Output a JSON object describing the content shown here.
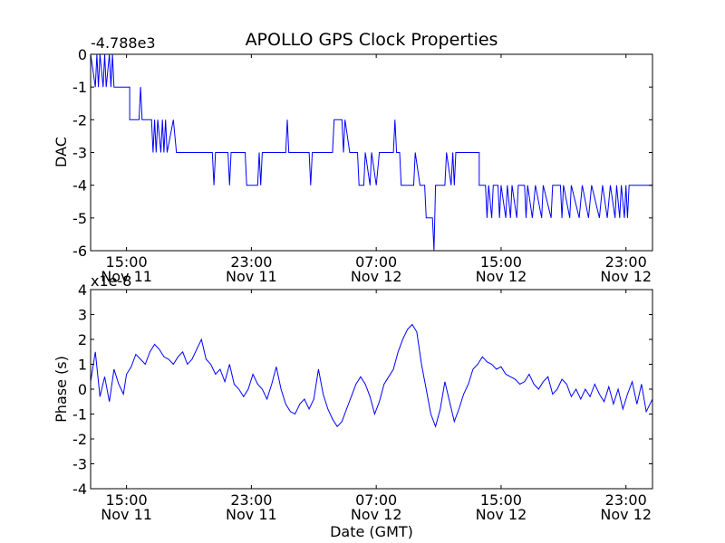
{
  "title": "APOLLO GPS Clock Properties",
  "xlabel": "Date (GMT)",
  "colors": {
    "line": "#0000ff",
    "axes": "#000000",
    "background": "#ffffff"
  },
  "x_ticks": [
    {
      "line1": "15:00",
      "line2": "Nov 11"
    },
    {
      "line1": "23:00",
      "line2": "Nov 11"
    },
    {
      "line1": "07:00",
      "line2": "Nov 12"
    },
    {
      "line1": "15:00",
      "line2": "Nov 12"
    },
    {
      "line1": "23:00",
      "line2": "Nov 12"
    }
  ],
  "top_ylabel": "DAC",
  "top_offset": "-4.788e3",
  "top_yticks": [
    "0",
    "-1",
    "-2",
    "-3",
    "-4",
    "-5",
    "-6"
  ],
  "bottom_ylabel": "Phase (s)",
  "bottom_multiplier": "x1e-8",
  "bottom_yticks": [
    "4",
    "3",
    "2",
    "1",
    "0",
    "-1",
    "-2",
    "-3",
    "-4"
  ],
  "chart_data": [
    {
      "type": "line",
      "title": "APOLLO GPS Clock Properties",
      "xlabel": "",
      "ylabel": "DAC",
      "y_offset": "-4.788e3",
      "x_unit": "hours since Nov 11 00:00 GMT",
      "xlim": [
        12.7,
        48.7
      ],
      "ylim": [
        -6,
        0
      ],
      "grid": false,
      "series": [
        {
          "values": [
            [
              12.7,
              0
            ],
            [
              13.0,
              -1
            ],
            [
              13.1,
              0
            ],
            [
              13.2,
              -1
            ],
            [
              13.3,
              0
            ],
            [
              13.5,
              -1
            ],
            [
              13.6,
              0
            ],
            [
              13.7,
              -1
            ],
            [
              13.9,
              0
            ],
            [
              14.0,
              -1
            ],
            [
              14.1,
              0
            ],
            [
              14.2,
              -1
            ],
            [
              15.2,
              -1
            ],
            [
              15.2,
              -2
            ],
            [
              15.8,
              -2
            ],
            [
              15.9,
              -1
            ],
            [
              16.0,
              -2
            ],
            [
              16.6,
              -2
            ],
            [
              16.7,
              -3
            ],
            [
              16.8,
              -2
            ],
            [
              16.9,
              -3
            ],
            [
              17.0,
              -2
            ],
            [
              17.2,
              -3
            ],
            [
              17.3,
              -2
            ],
            [
              17.4,
              -3
            ],
            [
              17.5,
              -2
            ],
            [
              17.6,
              -3
            ],
            [
              18.0,
              -2
            ],
            [
              18.2,
              -3
            ],
            [
              20.5,
              -3
            ],
            [
              20.6,
              -4
            ],
            [
              20.7,
              -3
            ],
            [
              21.5,
              -3
            ],
            [
              21.6,
              -4
            ],
            [
              21.7,
              -3
            ],
            [
              22.6,
              -3
            ],
            [
              22.7,
              -4
            ],
            [
              23.4,
              -4
            ],
            [
              23.5,
              -3
            ],
            [
              23.6,
              -4
            ],
            [
              23.7,
              -3
            ],
            [
              25.2,
              -3
            ],
            [
              25.3,
              -2
            ],
            [
              25.4,
              -3
            ],
            [
              26.7,
              -3
            ],
            [
              26.8,
              -4
            ],
            [
              26.9,
              -3
            ],
            [
              28.2,
              -3
            ],
            [
              28.3,
              -2
            ],
            [
              28.8,
              -2
            ],
            [
              28.9,
              -3
            ],
            [
              29.0,
              -2
            ],
            [
              29.3,
              -3
            ],
            [
              29.8,
              -3
            ],
            [
              29.9,
              -4
            ],
            [
              30.2,
              -4
            ],
            [
              30.3,
              -3
            ],
            [
              30.6,
              -4
            ],
            [
              30.7,
              -3
            ],
            [
              31.0,
              -4
            ],
            [
              31.2,
              -3
            ],
            [
              32.1,
              -3
            ],
            [
              32.2,
              -2
            ],
            [
              32.3,
              -3
            ],
            [
              32.5,
              -3
            ],
            [
              32.6,
              -4
            ],
            [
              33.4,
              -4
            ],
            [
              33.5,
              -3
            ],
            [
              33.8,
              -4
            ],
            [
              34.1,
              -4
            ],
            [
              34.2,
              -5
            ],
            [
              34.6,
              -5
            ],
            [
              34.7,
              -6
            ],
            [
              34.8,
              -4
            ],
            [
              35.4,
              -4
            ],
            [
              35.5,
              -3
            ],
            [
              35.8,
              -4
            ],
            [
              35.9,
              -3
            ],
            [
              36.0,
              -4
            ],
            [
              36.1,
              -3
            ],
            [
              37.6,
              -3
            ],
            [
              37.6,
              -4
            ],
            [
              38.0,
              -4
            ],
            [
              38.1,
              -5
            ],
            [
              38.2,
              -4
            ],
            [
              38.4,
              -5
            ],
            [
              38.5,
              -4
            ],
            [
              38.8,
              -4
            ],
            [
              38.9,
              -5
            ],
            [
              39.0,
              -4
            ],
            [
              39.3,
              -5
            ],
            [
              39.4,
              -4
            ],
            [
              39.6,
              -5
            ],
            [
              39.7,
              -4
            ],
            [
              40.0,
              -5
            ],
            [
              40.1,
              -4
            ],
            [
              40.5,
              -4
            ],
            [
              40.6,
              -5
            ],
            [
              40.7,
              -4
            ],
            [
              41.0,
              -5
            ],
            [
              41.2,
              -4
            ],
            [
              41.6,
              -5
            ],
            [
              41.7,
              -4
            ],
            [
              42.2,
              -5
            ],
            [
              42.3,
              -4
            ],
            [
              42.8,
              -4
            ],
            [
              42.9,
              -5
            ],
            [
              43.0,
              -4
            ],
            [
              43.4,
              -5
            ],
            [
              43.5,
              -4
            ],
            [
              44.0,
              -5
            ],
            [
              44.2,
              -4
            ],
            [
              44.6,
              -5
            ],
            [
              44.8,
              -4
            ],
            [
              45.3,
              -5
            ],
            [
              45.5,
              -4
            ],
            [
              45.8,
              -5
            ],
            [
              46.0,
              -4
            ],
            [
              46.3,
              -5
            ],
            [
              46.4,
              -4
            ],
            [
              46.6,
              -5
            ],
            [
              46.7,
              -4
            ],
            [
              46.9,
              -5
            ],
            [
              47.0,
              -4
            ],
            [
              47.1,
              -5
            ],
            [
              47.2,
              -4
            ],
            [
              48.7,
              -4
            ]
          ]
        }
      ]
    },
    {
      "type": "line",
      "title": "",
      "xlabel": "Date (GMT)",
      "ylabel": "Phase (s)",
      "y_multiplier": "x1e-8",
      "x_unit": "hours since Nov 11 00:00 GMT",
      "xlim": [
        12.7,
        48.7
      ],
      "ylim": [
        -4,
        4
      ],
      "grid": false,
      "series": [
        {
          "values": [
            [
              12.7,
              0.3
            ],
            [
              13.0,
              1.5
            ],
            [
              13.3,
              -0.3
            ],
            [
              13.6,
              0.5
            ],
            [
              13.9,
              -0.5
            ],
            [
              14.2,
              0.8
            ],
            [
              14.5,
              0.2
            ],
            [
              14.8,
              -0.2
            ],
            [
              15.0,
              0.6
            ],
            [
              15.3,
              0.9
            ],
            [
              15.6,
              1.4
            ],
            [
              15.9,
              1.2
            ],
            [
              16.2,
              1.0
            ],
            [
              16.5,
              1.5
            ],
            [
              16.8,
              1.8
            ],
            [
              17.1,
              1.6
            ],
            [
              17.4,
              1.3
            ],
            [
              17.7,
              1.2
            ],
            [
              18.0,
              1.0
            ],
            [
              18.3,
              1.3
            ],
            [
              18.6,
              1.5
            ],
            [
              18.9,
              1.0
            ],
            [
              19.2,
              1.2
            ],
            [
              19.5,
              1.6
            ],
            [
              19.8,
              2.0
            ],
            [
              20.1,
              1.2
            ],
            [
              20.4,
              1.0
            ],
            [
              20.7,
              0.6
            ],
            [
              21.0,
              0.8
            ],
            [
              21.3,
              0.3
            ],
            [
              21.6,
              1.0
            ],
            [
              21.9,
              0.2
            ],
            [
              22.2,
              0.0
            ],
            [
              22.5,
              -0.3
            ],
            [
              22.8,
              0.0
            ],
            [
              23.1,
              0.6
            ],
            [
              23.4,
              0.2
            ],
            [
              23.7,
              0.0
            ],
            [
              24.0,
              -0.4
            ],
            [
              24.3,
              0.2
            ],
            [
              24.6,
              0.9
            ],
            [
              24.9,
              0.0
            ],
            [
              25.2,
              -0.6
            ],
            [
              25.5,
              -0.9
            ],
            [
              25.8,
              -1.0
            ],
            [
              26.1,
              -0.6
            ],
            [
              26.4,
              -0.4
            ],
            [
              26.7,
              -0.8
            ],
            [
              27.0,
              -0.4
            ],
            [
              27.3,
              0.8
            ],
            [
              27.6,
              -0.2
            ],
            [
              27.9,
              -0.8
            ],
            [
              28.2,
              -1.2
            ],
            [
              28.5,
              -1.5
            ],
            [
              28.8,
              -1.3
            ],
            [
              29.1,
              -0.8
            ],
            [
              29.4,
              -0.3
            ],
            [
              29.7,
              0.2
            ],
            [
              30.0,
              0.5
            ],
            [
              30.3,
              0.2
            ],
            [
              30.6,
              -0.3
            ],
            [
              30.9,
              -1.0
            ],
            [
              31.2,
              -0.5
            ],
            [
              31.5,
              0.2
            ],
            [
              31.8,
              0.5
            ],
            [
              32.1,
              0.8
            ],
            [
              32.4,
              1.5
            ],
            [
              32.7,
              2.0
            ],
            [
              33.0,
              2.4
            ],
            [
              33.3,
              2.6
            ],
            [
              33.6,
              2.3
            ],
            [
              33.9,
              1.0
            ],
            [
              34.2,
              0.0
            ],
            [
              34.5,
              -1.0
            ],
            [
              34.8,
              -1.5
            ],
            [
              35.1,
              -0.8
            ],
            [
              35.4,
              0.3
            ],
            [
              35.7,
              -0.5
            ],
            [
              36.0,
              -1.3
            ],
            [
              36.3,
              -0.8
            ],
            [
              36.6,
              -0.2
            ],
            [
              36.9,
              0.2
            ],
            [
              37.2,
              0.8
            ],
            [
              37.5,
              1.0
            ],
            [
              37.8,
              1.3
            ],
            [
              38.1,
              1.1
            ],
            [
              38.4,
              1.0
            ],
            [
              38.7,
              0.8
            ],
            [
              39.0,
              0.9
            ],
            [
              39.3,
              0.6
            ],
            [
              39.6,
              0.5
            ],
            [
              39.9,
              0.4
            ],
            [
              40.2,
              0.2
            ],
            [
              40.5,
              0.3
            ],
            [
              40.8,
              0.6
            ],
            [
              41.1,
              0.2
            ],
            [
              41.4,
              0.0
            ],
            [
              41.7,
              0.3
            ],
            [
              42.0,
              0.5
            ],
            [
              42.3,
              -0.2
            ],
            [
              42.6,
              0.0
            ],
            [
              42.9,
              0.4
            ],
            [
              43.2,
              0.2
            ],
            [
              43.5,
              -0.3
            ],
            [
              43.8,
              0.0
            ],
            [
              44.1,
              -0.4
            ],
            [
              44.4,
              0.0
            ],
            [
              44.7,
              -0.3
            ],
            [
              45.0,
              0.2
            ],
            [
              45.3,
              -0.2
            ],
            [
              45.6,
              -0.5
            ],
            [
              45.9,
              0.1
            ],
            [
              46.2,
              -0.6
            ],
            [
              46.5,
              0.0
            ],
            [
              46.8,
              -0.8
            ],
            [
              47.1,
              -0.2
            ],
            [
              47.4,
              0.3
            ],
            [
              47.7,
              -0.6
            ],
            [
              48.0,
              0.2
            ],
            [
              48.3,
              -0.9
            ],
            [
              48.7,
              -0.4
            ]
          ]
        }
      ]
    }
  ]
}
